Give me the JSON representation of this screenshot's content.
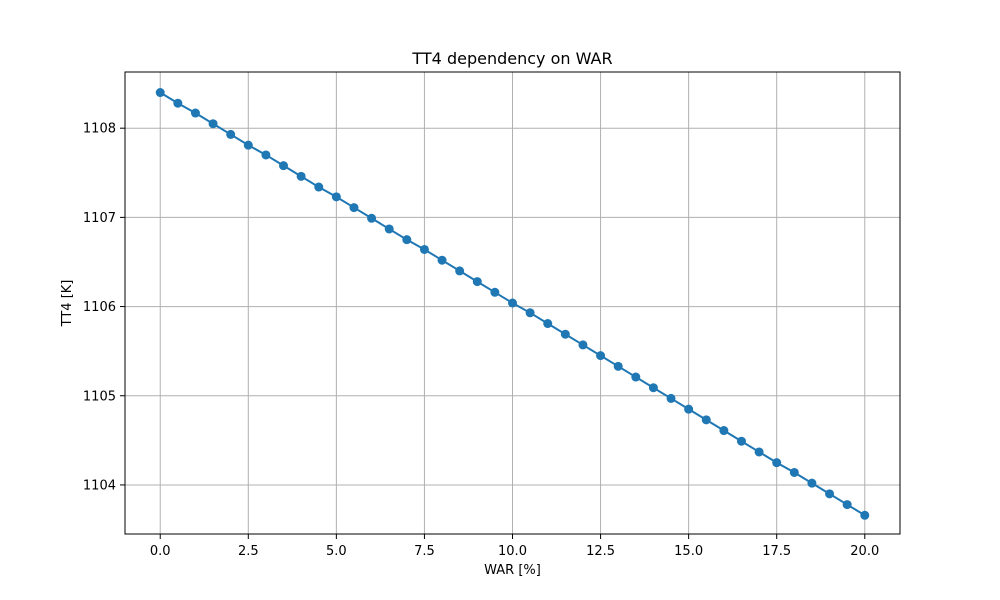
{
  "chart_data": {
    "type": "line",
    "title": "TT4 dependency on WAR",
    "xlabel": "WAR [%]",
    "ylabel": "TT4 [K]",
    "xlim": [
      -1.0,
      21.0
    ],
    "ylim": [
      1103.45,
      1108.63
    ],
    "xticks": [
      0.0,
      2.5,
      5.0,
      7.5,
      10.0,
      12.5,
      15.0,
      17.5,
      20.0
    ],
    "xtick_labels": [
      "0.0",
      "2.5",
      "5.0",
      "7.5",
      "10.0",
      "12.5",
      "15.0",
      "17.5",
      "20.0"
    ],
    "yticks": [
      1104,
      1105,
      1106,
      1107,
      1108
    ],
    "ytick_labels": [
      "1104",
      "1105",
      "1106",
      "1107",
      "1108"
    ],
    "grid": true,
    "colors": {
      "series": "#1f77b4",
      "grid": "#b0b0b0",
      "axes": "#000000"
    },
    "series": [
      {
        "marker": "circle",
        "x": [
          0.0,
          0.5,
          1.0,
          1.5,
          2.0,
          2.5,
          3.0,
          3.5,
          4.0,
          4.5,
          5.0,
          5.5,
          6.0,
          6.5,
          7.0,
          7.5,
          8.0,
          8.5,
          9.0,
          9.5,
          10.0,
          10.5,
          11.0,
          11.5,
          12.0,
          12.5,
          13.0,
          13.5,
          14.0,
          14.5,
          15.0,
          15.5,
          16.0,
          16.5,
          17.0,
          17.5,
          18.0,
          18.5,
          19.0,
          19.5,
          20.0
        ],
        "y": [
          1108.4,
          1108.28,
          1108.17,
          1108.05,
          1107.93,
          1107.81,
          1107.7,
          1107.58,
          1107.46,
          1107.34,
          1107.23,
          1107.11,
          1106.99,
          1106.87,
          1106.75,
          1106.64,
          1106.52,
          1106.4,
          1106.28,
          1106.16,
          1106.04,
          1105.93,
          1105.81,
          1105.69,
          1105.57,
          1105.45,
          1105.33,
          1105.21,
          1105.09,
          1104.97,
          1104.85,
          1104.73,
          1104.61,
          1104.49,
          1104.37,
          1104.25,
          1104.14,
          1104.02,
          1103.9,
          1103.78,
          1103.66
        ]
      }
    ]
  }
}
